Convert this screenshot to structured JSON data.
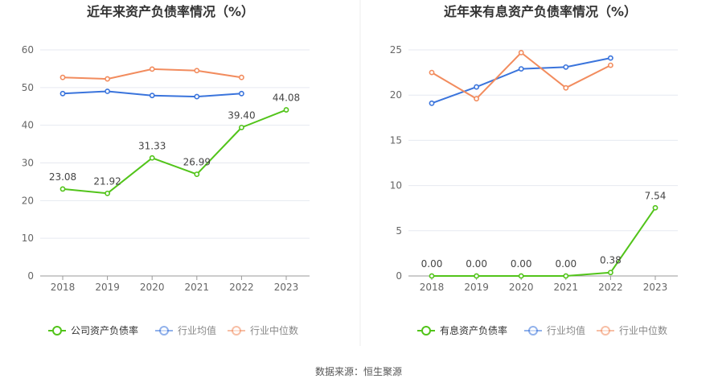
{
  "source_text": "数据来源：恒生聚源",
  "chart_data": [
    {
      "type": "line",
      "title": "近年来资产负债率情况（%）",
      "categories": [
        "2018",
        "2019",
        "2020",
        "2021",
        "2022",
        "2023"
      ],
      "ylim": [
        0,
        60
      ],
      "yticks": [
        0,
        10,
        20,
        30,
        40,
        50,
        60
      ],
      "series": [
        {
          "name": "公司资产负债率",
          "color": "#52c41a",
          "values": [
            23.08,
            21.92,
            31.33,
            26.99,
            39.4,
            44.08
          ],
          "labels": [
            "23.08",
            "21.92",
            "31.33",
            "26.99",
            "39.40",
            "44.08"
          ]
        },
        {
          "name": "行业均值",
          "color": "#3a74dc",
          "values": [
            48.4,
            49.0,
            47.9,
            47.6,
            48.4,
            null
          ]
        },
        {
          "name": "行业中位数",
          "color": "#f28c5e",
          "values": [
            52.7,
            52.3,
            54.9,
            54.5,
            52.7,
            null
          ]
        }
      ]
    },
    {
      "type": "line",
      "title": "近年来有息资产负债率情况（%）",
      "categories": [
        "2018",
        "2019",
        "2020",
        "2021",
        "2022",
        "2023"
      ],
      "ylim": [
        0,
        25
      ],
      "yticks": [
        0,
        5,
        10,
        15,
        20,
        25
      ],
      "series": [
        {
          "name": "有息资产负债率",
          "color": "#52c41a",
          "values": [
            0.0,
            0.0,
            0.0,
            0.0,
            0.38,
            7.54
          ],
          "labels": [
            "0.00",
            "0.00",
            "0.00",
            "0.00",
            "0.38",
            "7.54"
          ]
        },
        {
          "name": "行业均值",
          "color": "#3a74dc",
          "values": [
            19.1,
            20.9,
            22.9,
            23.1,
            24.1,
            null
          ]
        },
        {
          "name": "行业中位数",
          "color": "#f28c5e",
          "values": [
            22.5,
            19.6,
            24.7,
            20.8,
            23.3,
            null
          ]
        }
      ]
    }
  ]
}
